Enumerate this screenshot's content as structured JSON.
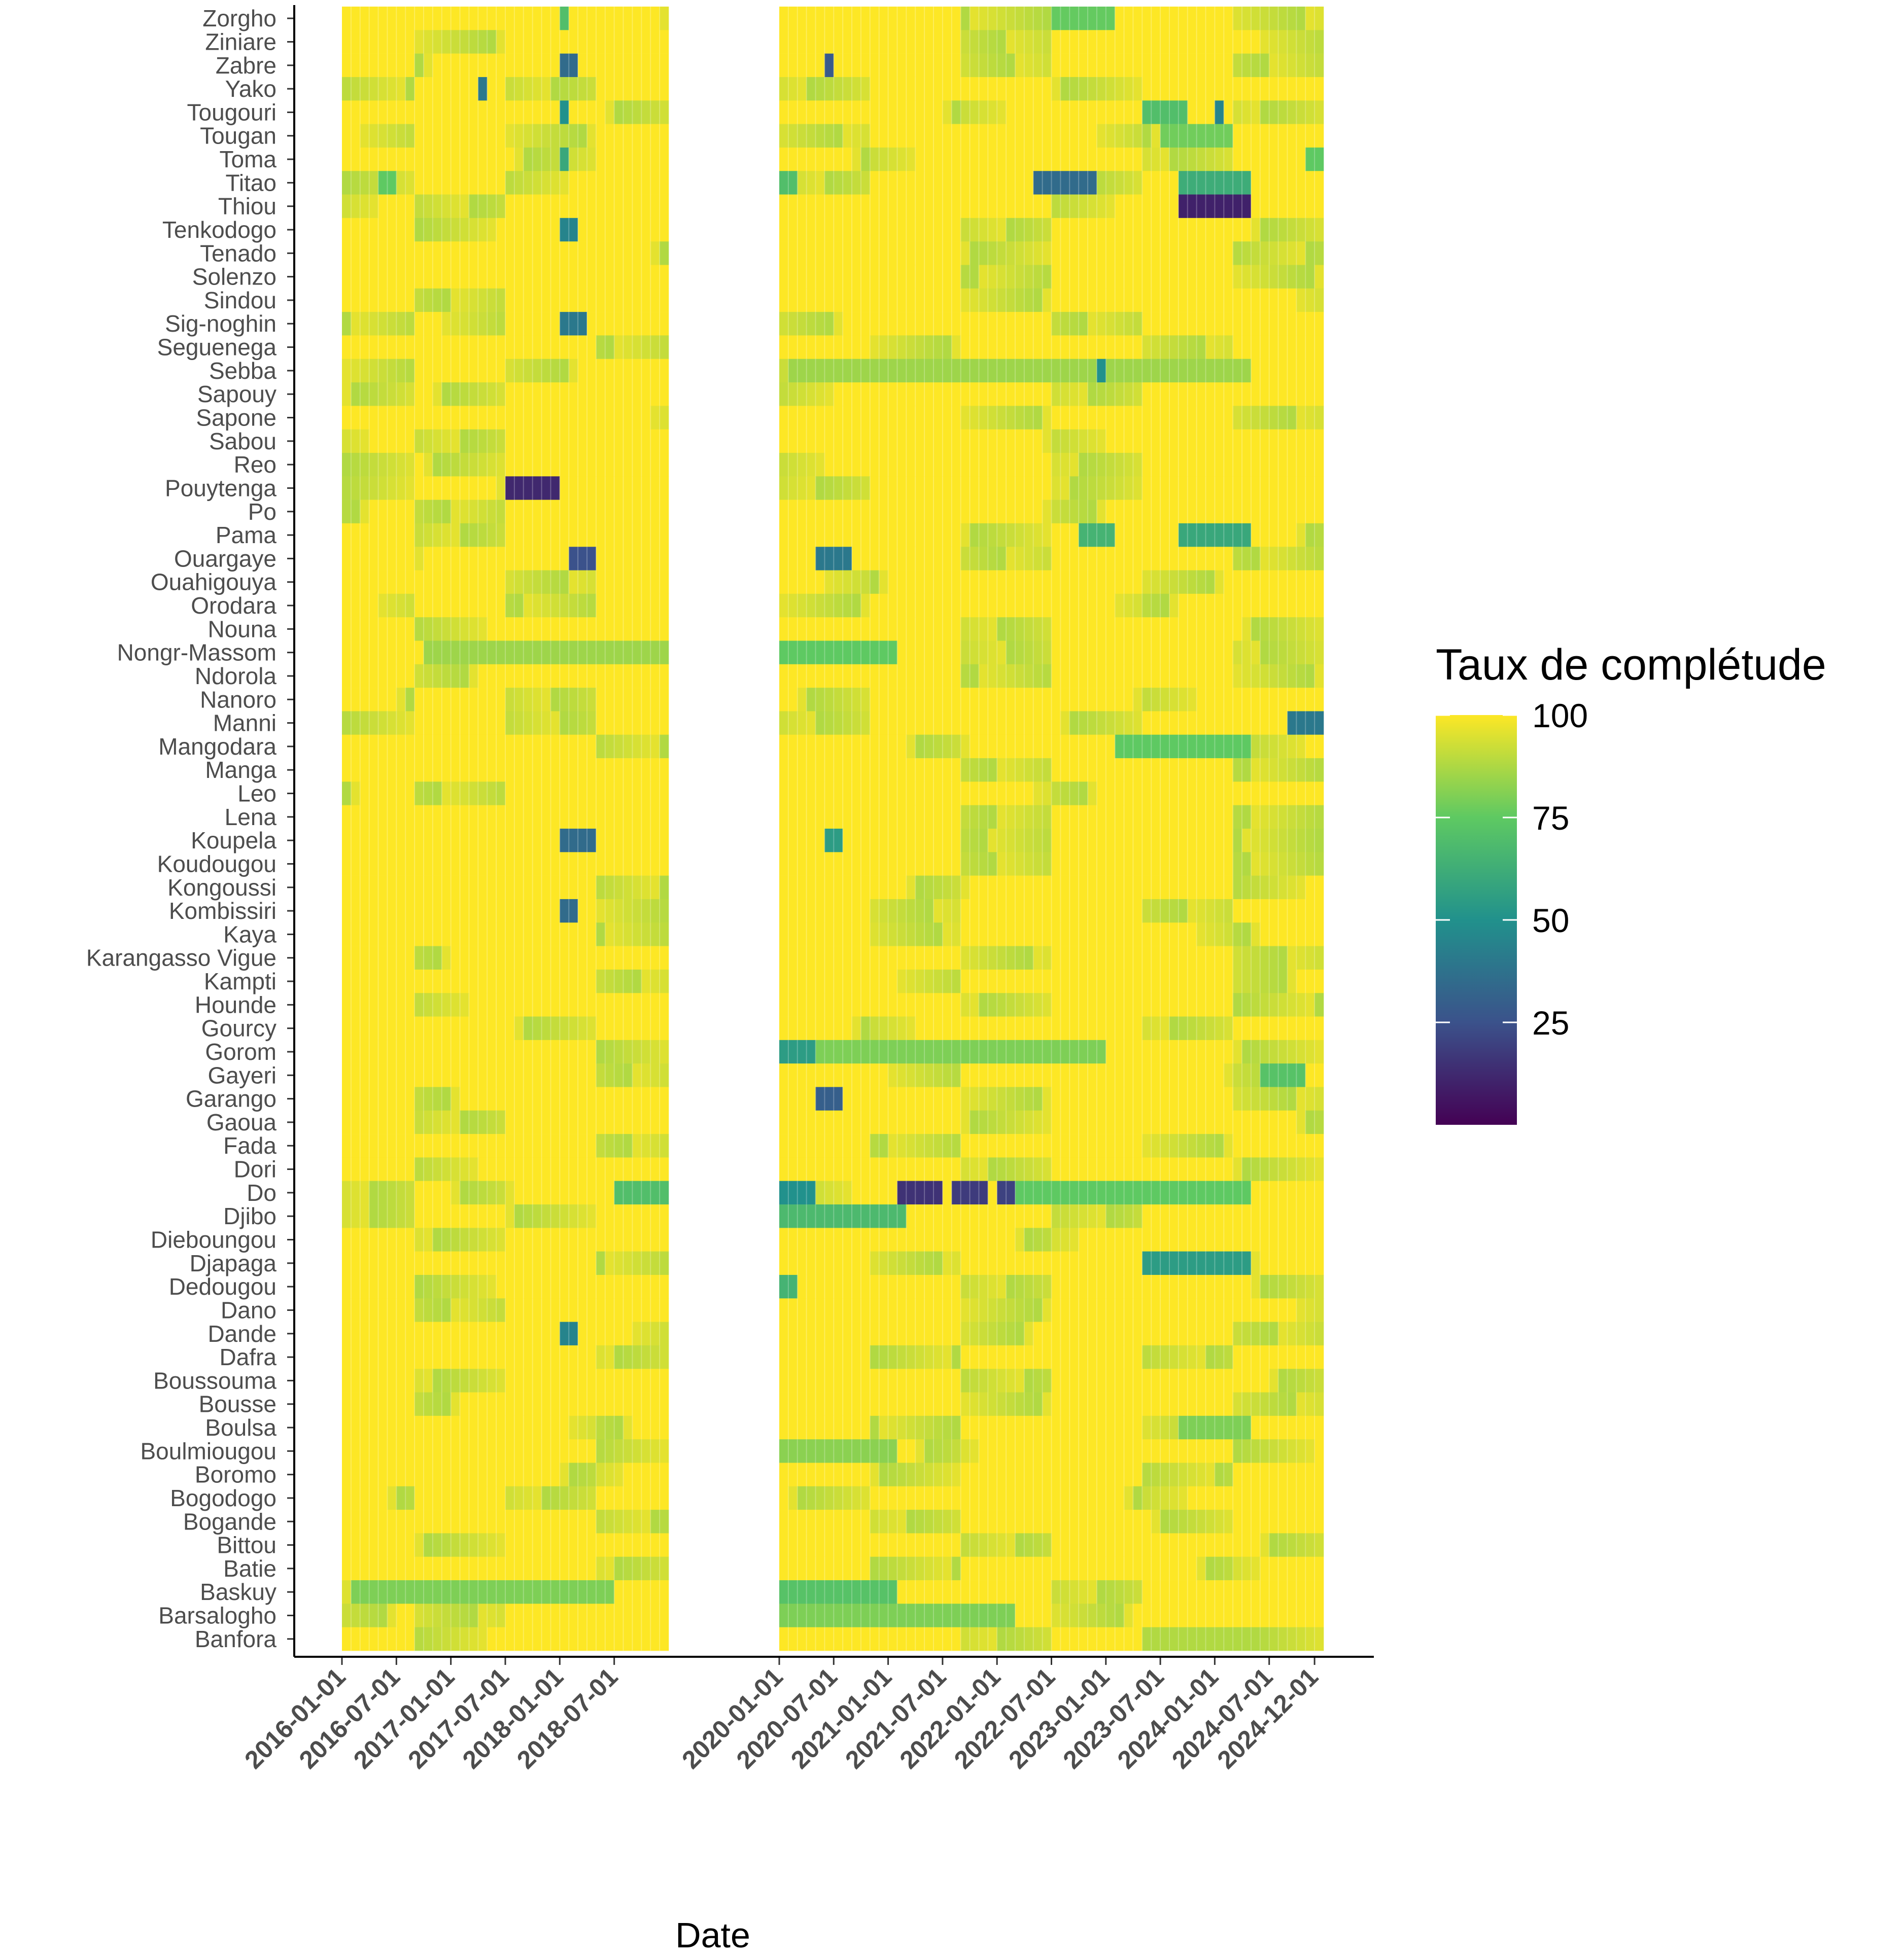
{
  "chart_data": {
    "type": "heatmap",
    "xlabel": "Date",
    "ylabel": "",
    "legend": {
      "title": "Taux de complétude",
      "placement": "right",
      "ticks": [
        25,
        50,
        75,
        100
      ],
      "range": [
        0,
        100
      ]
    },
    "colors": {
      "low": "#440154",
      "mid1": "#3b528b",
      "mid2": "#21918c",
      "mid3": "#5ec962",
      "high": "#fde725"
    },
    "x_tick_labels": [
      "2016-01-01",
      "2016-07-01",
      "2017-01-01",
      "2017-07-01",
      "2018-01-01",
      "2018-07-01",
      "2020-01-01",
      "2020-07-01",
      "2021-01-01",
      "2021-07-01",
      "2022-01-01",
      "2022-07-01",
      "2023-01-01",
      "2023-07-01",
      "2024-01-01",
      "2024-07-01",
      "2024-12-01"
    ],
    "periods": [
      {
        "start": "2016-01",
        "end": "2018-12"
      },
      {
        "start": "2020-01",
        "end": "2024-12"
      }
    ],
    "districts": [
      "Zorgho",
      "Ziniare",
      "Zabre",
      "Yako",
      "Tougouri",
      "Tougan",
      "Toma",
      "Titao",
      "Thiou",
      "Tenkodogo",
      "Tenado",
      "Solenzo",
      "Sindou",
      "Sig-noghin",
      "Seguenega",
      "Sebba",
      "Sapouy",
      "Sapone",
      "Sabou",
      "Reo",
      "Pouytenga",
      "Po",
      "Pama",
      "Ouargaye",
      "Ouahigouya",
      "Orodara",
      "Nouna",
      "Nongr-Massom",
      "Ndorola",
      "Nanoro",
      "Manni",
      "Mangodara",
      "Manga",
      "Leo",
      "Lena",
      "Koupela",
      "Koudougou",
      "Kongoussi",
      "Kombissiri",
      "Kaya",
      "Karangasso Vigue",
      "Kampti",
      "Hounde",
      "Gourcy",
      "Gorom",
      "Gayeri",
      "Garango",
      "Gaoua",
      "Fada",
      "Dori",
      "Do",
      "Djibo",
      "Dieboungou",
      "Djapaga",
      "Dedougou",
      "Dano",
      "Dande",
      "Dafra",
      "Boussouma",
      "Bousse",
      "Boulsa",
      "Boulmiougou",
      "Boromo",
      "Bogodogo",
      "Bogande",
      "Bittou",
      "Batie",
      "Baskuy",
      "Barsalogho",
      "Banfora"
    ],
    "default_value": 100,
    "background_value": 96,
    "cells": [
      {
        "district": "Zorgho",
        "from": "2018-01",
        "to": "2018-01",
        "value": 70
      },
      {
        "district": "Zorgho",
        "from": "2022-07",
        "to": "2023-01",
        "value": 76
      },
      {
        "district": "Zabre",
        "from": "2018-01",
        "to": "2018-02",
        "value": 35
      },
      {
        "district": "Zabre",
        "from": "2020-06",
        "to": "2020-06",
        "value": 28
      },
      {
        "district": "Yako",
        "from": "2017-04",
        "to": "2017-04",
        "value": 40
      },
      {
        "district": "Tougouri",
        "from": "2018-01",
        "to": "2018-01",
        "value": 50
      },
      {
        "district": "Tougouri",
        "from": "2023-05",
        "to": "2023-09",
        "value": 70
      },
      {
        "district": "Tougouri",
        "from": "2024-01",
        "to": "2024-01",
        "value": 45
      },
      {
        "district": "Tougan",
        "from": "2023-07",
        "to": "2024-02",
        "value": 78
      },
      {
        "district": "Toma",
        "from": "2018-01",
        "to": "2018-01",
        "value": 60
      },
      {
        "district": "Toma",
        "from": "2024-11",
        "to": "2024-12",
        "value": 75
      },
      {
        "district": "Titao",
        "from": "2016-05",
        "to": "2016-06",
        "value": 75
      },
      {
        "district": "Titao",
        "from": "2020-01",
        "to": "2020-02",
        "value": 70
      },
      {
        "district": "Titao",
        "from": "2022-05",
        "to": "2022-11",
        "value": 35
      },
      {
        "district": "Titao",
        "from": "2023-09",
        "to": "2024-04",
        "value": 62
      },
      {
        "district": "Thiou",
        "from": "2023-09",
        "to": "2024-04",
        "value": 10
      },
      {
        "district": "Tenkodogo",
        "from": "2018-01",
        "to": "2018-02",
        "value": 45
      },
      {
        "district": "Sig-noghin",
        "from": "2018-01",
        "to": "2018-03",
        "value": 40
      },
      {
        "district": "Sebba",
        "from": "2020-02",
        "to": "2024-04",
        "value": 85
      },
      {
        "district": "Sebba",
        "from": "2022-12",
        "to": "2022-12",
        "value": 50
      },
      {
        "district": "Pouytenga",
        "from": "2017-07",
        "to": "2017-12",
        "value": 12
      },
      {
        "district": "Pama",
        "from": "2022-10",
        "to": "2023-01",
        "value": 65
      },
      {
        "district": "Pama",
        "from": "2023-09",
        "to": "2024-04",
        "value": 60
      },
      {
        "district": "Ouargaye",
        "from": "2018-02",
        "to": "2018-04",
        "value": 25
      },
      {
        "district": "Ouargaye",
        "from": "2020-05",
        "to": "2020-08",
        "value": 40
      },
      {
        "district": "Nongr-Massom",
        "from": "2016-10",
        "to": "2018-12",
        "value": 85
      },
      {
        "district": "Nongr-Massom",
        "from": "2020-01",
        "to": "2021-01",
        "value": 75
      },
      {
        "district": "Manni",
        "from": "2024-09",
        "to": "2024-12",
        "value": 40
      },
      {
        "district": "Mangodara",
        "from": "2023-02",
        "to": "2024-04",
        "value": 75
      },
      {
        "district": "Koupela",
        "from": "2018-01",
        "to": "2018-04",
        "value": 35
      },
      {
        "district": "Koupela",
        "from": "2020-06",
        "to": "2020-07",
        "value": 55
      },
      {
        "district": "Kombissiri",
        "from": "2018-01",
        "to": "2018-02",
        "value": 35
      },
      {
        "district": "Gorom",
        "from": "2020-01",
        "to": "2020-04",
        "value": 55
      },
      {
        "district": "Gorom",
        "from": "2020-05",
        "to": "2022-12",
        "value": 80
      },
      {
        "district": "Gayeri",
        "from": "2024-06",
        "to": "2024-10",
        "value": 72
      },
      {
        "district": "Garango",
        "from": "2020-05",
        "to": "2020-07",
        "value": 30
      },
      {
        "district": "Do",
        "from": "2018-07",
        "to": "2018-12",
        "value": 70
      },
      {
        "district": "Do",
        "from": "2020-01",
        "to": "2020-04",
        "value": 50
      },
      {
        "district": "Do",
        "from": "2021-02",
        "to": "2021-06",
        "value": 15
      },
      {
        "district": "Do",
        "from": "2021-08",
        "to": "2021-11",
        "value": 18
      },
      {
        "district": "Do",
        "from": "2022-01",
        "to": "2022-02",
        "value": 20
      },
      {
        "district": "Do",
        "from": "2022-03",
        "to": "2024-04",
        "value": 75
      },
      {
        "district": "Djibo",
        "from": "2020-01",
        "to": "2021-02",
        "value": 68
      },
      {
        "district": "Djapaga",
        "from": "2023-05",
        "to": "2024-04",
        "value": 55
      },
      {
        "district": "Dedougou",
        "from": "2020-01",
        "to": "2020-02",
        "value": 65
      },
      {
        "district": "Dande",
        "from": "2018-01",
        "to": "2018-02",
        "value": 45
      },
      {
        "district": "Boulsa",
        "from": "2023-09",
        "to": "2024-04",
        "value": 80
      },
      {
        "district": "Boulmiougou",
        "from": "2020-01",
        "to": "2021-01",
        "value": 82
      },
      {
        "district": "Baskuy",
        "from": "2016-02",
        "to": "2018-06",
        "value": 80
      },
      {
        "district": "Baskuy",
        "from": "2020-01",
        "to": "2021-01",
        "value": 72
      },
      {
        "district": "Barsalogho",
        "from": "2020-01",
        "to": "2022-02",
        "value": 80
      },
      {
        "district": "Banfora",
        "from": "2023-05",
        "to": "2024-04",
        "value": 88
      }
    ]
  }
}
